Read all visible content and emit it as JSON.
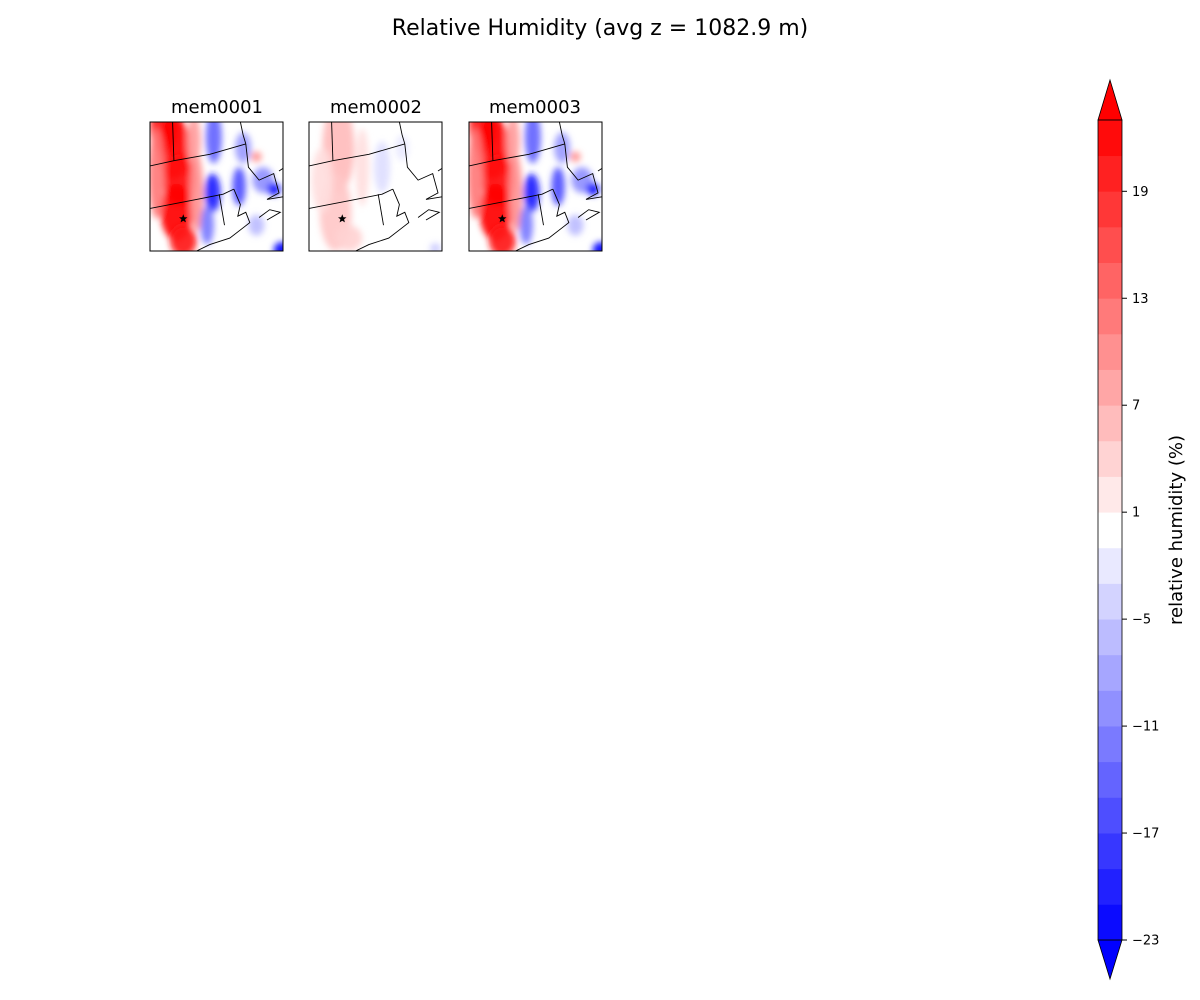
{
  "title": "Relative Humidity (avg z = 1082.9 m)",
  "chart_data": {
    "type": "heatmap",
    "panels": [
      {
        "title": "mem0001",
        "field": "strong"
      },
      {
        "title": "mem0002",
        "field": "weak"
      },
      {
        "title": "mem0003",
        "field": "strong"
      }
    ],
    "colorbar": {
      "label": "relative humidity (%)",
      "levels_min": -23,
      "levels_max": 23,
      "level_step": 2,
      "extend": "both",
      "ticks": [
        -23,
        -17,
        -11,
        -5,
        1,
        7,
        13,
        19
      ],
      "tick_labels": [
        "−23",
        "−17",
        "−11",
        "−5",
        "1",
        "7",
        "13",
        "19"
      ],
      "cmap": "bwr",
      "colors": {
        "low": "#0000ff",
        "mid": "#ffffff",
        "high": "#ff0000"
      }
    },
    "marker": "star"
  }
}
